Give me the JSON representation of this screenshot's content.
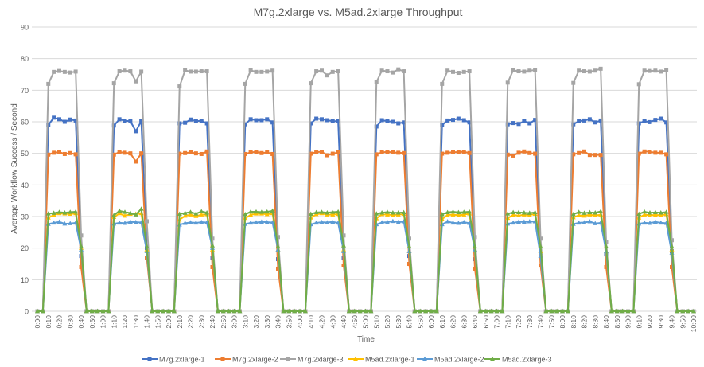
{
  "chart_data": {
    "type": "line",
    "title": "M7g.2xlarge vs. M5ad.2xlarge Throughput",
    "xlabel": "Time",
    "ylabel": "Average Workflow Success / Second",
    "ylim": [
      0,
      90
    ],
    "yticks": [
      0,
      10,
      20,
      30,
      40,
      50,
      60,
      70,
      80,
      90
    ],
    "grid": true,
    "legend_position": "bottom",
    "x_step_minutes": 5,
    "x_range_minutes": [
      0,
      600
    ],
    "xtick_labels": [
      "0:00",
      "0:10",
      "0:20",
      "0:30",
      "0:40",
      "0:50",
      "1:00",
      "1:10",
      "1:20",
      "1:30",
      "1:40",
      "1:50",
      "2:00",
      "2:10",
      "2:20",
      "2:30",
      "2:40",
      "2:50",
      "3:00",
      "3:10",
      "3:20",
      "3:30",
      "3:40",
      "3:50",
      "4:00",
      "4:10",
      "4:20",
      "4:30",
      "4:40",
      "4:50",
      "5:00",
      "5:10",
      "5:20",
      "5:30",
      "5:40",
      "5:50",
      "6:00",
      "6:10",
      "6:20",
      "6:30",
      "6:40",
      "6:50",
      "7:00",
      "7:10",
      "7:20",
      "7:30",
      "7:40",
      "7:50",
      "8:00",
      "8:10",
      "8:20",
      "8:30",
      "8:40",
      "8:50",
      "9:00",
      "9:10",
      "9:20",
      "9:30",
      "9:40",
      "9:50",
      "10:00"
    ],
    "series": [
      {
        "name": "M7g.2xlarge-1",
        "color": "#4472C4",
        "marker": "square",
        "values": [
          0,
          0,
          59,
          61.3,
          60.8,
          60,
          60.7,
          60.4,
          17.5,
          0,
          0,
          0,
          0,
          0,
          58.8,
          60.8,
          60.3,
          60.2,
          57,
          60.2,
          20,
          0,
          0,
          0,
          0,
          0,
          59.5,
          59.7,
          60.7,
          60.2,
          60.3,
          59.5,
          17,
          0,
          0,
          0,
          0,
          0,
          59.2,
          60.8,
          60.5,
          60.5,
          60.8,
          59.8,
          16.5,
          0,
          0,
          0,
          0,
          0,
          59.5,
          61,
          60.8,
          60.5,
          60.2,
          60.2,
          17,
          0,
          0,
          0,
          0,
          0,
          58.5,
          60.5,
          60.2,
          60,
          59.5,
          59.8,
          17.5,
          0,
          0,
          0,
          0,
          0,
          59,
          60.4,
          60.6,
          61,
          60.5,
          59.8,
          16.5,
          0,
          0,
          0,
          0,
          0,
          59.2,
          59.6,
          59.3,
          60.2,
          59.5,
          60.6,
          17.5,
          0,
          0,
          0,
          0,
          0,
          59.2,
          60.2,
          60.4,
          60.8,
          59.8,
          60.4,
          18,
          0,
          0,
          0,
          0,
          0,
          59.5,
          60.2,
          59.9,
          60.6,
          61,
          59.8,
          19,
          0,
          0,
          0,
          0
        ]
      },
      {
        "name": "M7g.2xlarge-2",
        "color": "#ED7D31",
        "marker": "square",
        "values": [
          0,
          0,
          49.6,
          50.2,
          50.4,
          49.8,
          50.1,
          49.7,
          14,
          0,
          0,
          0,
          0,
          0,
          49.6,
          50.4,
          50.2,
          50,
          47.4,
          50,
          17,
          0,
          0,
          0,
          0,
          0,
          49.9,
          50.1,
          50.3,
          50,
          49.8,
          50.6,
          14,
          0,
          0,
          0,
          0,
          0,
          49.8,
          50.3,
          50.5,
          50.1,
          50.3,
          49.8,
          13.5,
          0,
          0,
          0,
          0,
          0,
          49.9,
          50.4,
          50.5,
          49.4,
          49.9,
          50.3,
          14.5,
          0,
          0,
          0,
          0,
          0,
          49.7,
          50.3,
          50.5,
          50.3,
          50.2,
          50.1,
          15,
          0,
          0,
          0,
          0,
          0,
          49.9,
          50.2,
          50.4,
          50.4,
          50.5,
          50.1,
          13.5,
          0,
          0,
          0,
          0,
          0,
          49.6,
          49.3,
          50.2,
          50.6,
          50.1,
          49.9,
          14.5,
          0,
          0,
          0,
          0,
          0,
          49.7,
          50.1,
          50.6,
          49.5,
          49.5,
          49.5,
          14,
          0,
          0,
          0,
          0,
          0,
          49.9,
          50.6,
          50.5,
          50.2,
          50.2,
          49.7,
          14,
          0,
          0,
          0,
          0
        ]
      },
      {
        "name": "M7g.2xlarge-3",
        "color": "#A5A5A5",
        "marker": "square",
        "values": [
          0,
          0,
          72,
          75.8,
          76.1,
          75.8,
          75.6,
          75.9,
          24,
          0,
          0,
          0,
          0,
          0,
          72.2,
          76,
          76.2,
          76,
          72.8,
          75.9,
          28.5,
          0,
          0,
          0,
          0,
          0,
          71.2,
          76.3,
          75.9,
          75.9,
          76,
          76,
          23,
          0,
          0,
          0,
          0,
          0,
          72,
          76.3,
          75.8,
          75.8,
          75.9,
          76.2,
          23.5,
          0,
          0,
          0,
          0,
          0,
          72.2,
          76,
          76.2,
          74.7,
          75.8,
          76,
          24,
          0,
          0,
          0,
          0,
          0,
          72.6,
          76.2,
          76,
          75.6,
          76.6,
          76,
          23,
          0,
          0,
          0,
          0,
          0,
          72,
          76.2,
          75.8,
          75.5,
          75.8,
          76,
          23.5,
          0,
          0,
          0,
          0,
          0,
          72.4,
          76.3,
          76,
          75.9,
          76.2,
          76.4,
          23,
          0,
          0,
          0,
          0,
          0,
          72.3,
          76.2,
          76,
          75.9,
          76.2,
          76.8,
          22,
          0,
          0,
          0,
          0,
          0,
          71.9,
          76.2,
          76.1,
          76.2,
          75.9,
          76.3,
          22.5,
          0,
          0,
          0,
          0
        ]
      },
      {
        "name": "M5ad.2xlarge-1",
        "color": "#FFC000",
        "marker": "triangle",
        "values": [
          0,
          0,
          29.6,
          30.5,
          31,
          30.9,
          30.8,
          31,
          20,
          0,
          0,
          0,
          0,
          0,
          29.8,
          31,
          30.2,
          30.8,
          30.8,
          31,
          19.5,
          0,
          0,
          0,
          0,
          0,
          29,
          30.2,
          30.6,
          30.1,
          30.6,
          30.7,
          19.5,
          0,
          0,
          0,
          0,
          0,
          29.5,
          30.5,
          30.9,
          30.9,
          30.7,
          31,
          19.5,
          0,
          0,
          0,
          0,
          0,
          29.6,
          30.7,
          31,
          30.6,
          30.6,
          30.8,
          19.5,
          0,
          0,
          0,
          0,
          0,
          29.4,
          30.7,
          30.6,
          30.5,
          30.6,
          30.8,
          19,
          0,
          0,
          0,
          0,
          0,
          29.2,
          30.5,
          30.6,
          30.4,
          30.6,
          30.9,
          19.5,
          0,
          0,
          0,
          0,
          0,
          29.5,
          30.5,
          30.3,
          30.6,
          30.5,
          30.8,
          19,
          0,
          0,
          0,
          0,
          0,
          29.7,
          30.4,
          30.2,
          30.6,
          30.3,
          30.6,
          19,
          0,
          0,
          0,
          0,
          0,
          29.6,
          30.6,
          30.4,
          30.5,
          30.4,
          30.7,
          19.5,
          0,
          0,
          0,
          0
        ]
      },
      {
        "name": "M5ad.2xlarge-2",
        "color": "#5B9BD5",
        "marker": "triangle",
        "values": [
          0,
          0,
          27.6,
          28,
          28.3,
          27.7,
          27.8,
          28,
          19.5,
          0,
          0,
          0,
          0,
          0,
          27.7,
          28,
          27.9,
          28.3,
          28.2,
          28.1,
          19,
          0,
          0,
          0,
          0,
          0,
          27.4,
          27.9,
          28.1,
          28,
          28.2,
          28.1,
          20,
          0,
          0,
          0,
          0,
          0,
          27.6,
          28,
          28.1,
          28.3,
          28.2,
          28.1,
          19.5,
          0,
          0,
          0,
          0,
          0,
          27.5,
          28,
          28.2,
          28.1,
          28.3,
          28,
          19,
          0,
          0,
          0,
          0,
          0,
          27.5,
          28.1,
          28.2,
          28.5,
          28.2,
          28.4,
          19,
          0,
          0,
          0,
          0,
          0,
          27.5,
          28.4,
          28,
          27.9,
          28.2,
          27.9,
          19.5,
          0,
          0,
          0,
          0,
          0,
          27.7,
          28,
          28.3,
          28.3,
          28.4,
          28.4,
          17.5,
          0,
          0,
          0,
          0,
          0,
          27.6,
          28,
          28.1,
          28.4,
          27.8,
          28,
          19,
          0,
          0,
          0,
          0,
          0,
          27.7,
          28,
          27.9,
          28.3,
          28,
          27.9,
          18.5,
          0,
          0,
          0,
          0
        ]
      },
      {
        "name": "M5ad.2xlarge-3",
        "color": "#70AD47",
        "marker": "triangle",
        "values": [
          0,
          0,
          30.9,
          31.1,
          31.4,
          31.2,
          31.4,
          31.5,
          20.5,
          0,
          0,
          0,
          0,
          0,
          30.4,
          31.8,
          31.4,
          31.1,
          30.6,
          32.4,
          20.5,
          0,
          0,
          0,
          0,
          0,
          30.8,
          31.1,
          31.4,
          30.9,
          31.6,
          31.2,
          20.8,
          0,
          0,
          0,
          0,
          0,
          30.7,
          31.5,
          31.5,
          31.4,
          31.5,
          31.8,
          20.5,
          0,
          0,
          0,
          0,
          0,
          30.8,
          31.3,
          31.4,
          31.2,
          31.4,
          31.5,
          20.8,
          0,
          0,
          0,
          0,
          0,
          30.9,
          31.2,
          31.4,
          31.2,
          31.2,
          31.3,
          20.5,
          0,
          0,
          0,
          0,
          0,
          30.7,
          31.3,
          31.5,
          31.3,
          31.4,
          31.5,
          20.5,
          0,
          0,
          0,
          0,
          0,
          30.9,
          31.3,
          31.3,
          31.2,
          31.1,
          31.3,
          20.5,
          0,
          0,
          0,
          0,
          0,
          30.7,
          31.4,
          31.1,
          31.3,
          31.2,
          31.6,
          20.5,
          0,
          0,
          0,
          0,
          0,
          30.8,
          31.5,
          31.2,
          31.3,
          31.2,
          31.4,
          20.5,
          0,
          0,
          0,
          0
        ]
      }
    ]
  }
}
